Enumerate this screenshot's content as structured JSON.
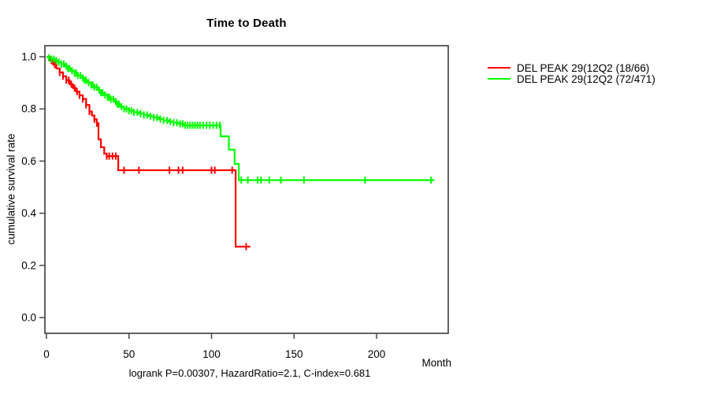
{
  "chart_data": {
    "type": "line",
    "subtype": "kaplan-meier-step-curve",
    "title": "Time to Death",
    "xlabel": "Month",
    "ylabel": "cumulative survival rate",
    "footer": "logrank P=0.00307, HazardRatio=2.1, C-index=0.681",
    "x_ticks": [
      0,
      50,
      100,
      150,
      200
    ],
    "y_ticks": [
      0.0,
      0.2,
      0.4,
      0.6,
      0.8,
      1.0
    ],
    "xlim": [
      0,
      243
    ],
    "ylim": [
      0.0,
      1.0
    ],
    "grid": false,
    "legend_position": "right-outside",
    "frame_color": "#3c3c3c",
    "series": [
      {
        "name": "DEL PEAK 29(12Q2 (18/66)",
        "color": "#ff0000",
        "end_month": 123.5,
        "points": [
          [
            0,
            1.0
          ],
          [
            2,
            0.985
          ],
          [
            4,
            0.97
          ],
          [
            6,
            0.955
          ],
          [
            8,
            0.94
          ],
          [
            10,
            0.925
          ],
          [
            12,
            0.91
          ],
          [
            14,
            0.895
          ],
          [
            16,
            0.88
          ],
          [
            18,
            0.866
          ],
          [
            20,
            0.852
          ],
          [
            22,
            0.838
          ],
          [
            24,
            0.815
          ],
          [
            26,
            0.79
          ],
          [
            27.5,
            0.775
          ],
          [
            29,
            0.76
          ],
          [
            30.5,
            0.745
          ],
          [
            31.5,
            0.683
          ],
          [
            33,
            0.653
          ],
          [
            35,
            0.628
          ],
          [
            36.5,
            0.619
          ],
          [
            43.5,
            0.565
          ],
          [
            114.6,
            0.272
          ]
        ],
        "censor_ticks": [
          3,
          5,
          8,
          10,
          12,
          13.5,
          15,
          17,
          18.5,
          20,
          22,
          24,
          26,
          29,
          30.5,
          36.5,
          38,
          40,
          42,
          47,
          56,
          74.5,
          80,
          82.5,
          100,
          102,
          112.5,
          121
        ]
      },
      {
        "name": "DEL PEAK 29(12Q2 (72/471)",
        "color": "#00ff00",
        "end_month": 235,
        "points": [
          [
            0,
            1.0
          ],
          [
            1,
            0.996
          ],
          [
            3,
            0.991
          ],
          [
            5,
            0.985
          ],
          [
            7,
            0.979
          ],
          [
            9,
            0.972
          ],
          [
            11,
            0.964
          ],
          [
            13,
            0.955
          ],
          [
            15,
            0.946
          ],
          [
            17,
            0.937
          ],
          [
            19,
            0.928
          ],
          [
            21,
            0.919
          ],
          [
            23,
            0.91
          ],
          [
            25,
            0.901
          ],
          [
            27,
            0.892
          ],
          [
            29,
            0.883
          ],
          [
            31,
            0.872
          ],
          [
            33,
            0.862
          ],
          [
            35,
            0.853
          ],
          [
            37,
            0.845
          ],
          [
            39,
            0.837
          ],
          [
            41,
            0.828
          ],
          [
            43,
            0.818
          ],
          [
            45,
            0.808
          ],
          [
            47,
            0.8
          ],
          [
            50,
            0.793
          ],
          [
            53,
            0.787
          ],
          [
            56,
            0.782
          ],
          [
            59,
            0.777
          ],
          [
            62,
            0.772
          ],
          [
            65,
            0.767
          ],
          [
            68,
            0.761
          ],
          [
            71,
            0.756
          ],
          [
            74,
            0.751
          ],
          [
            77,
            0.747
          ],
          [
            80,
            0.743
          ],
          [
            83,
            0.737
          ],
          [
            105.5,
            0.695
          ],
          [
            110.5,
            0.644
          ],
          [
            114,
            0.589
          ],
          [
            116.5,
            0.527
          ]
        ],
        "censor_ticks": [
          1.5,
          3,
          4.5,
          6,
          7.5,
          9,
          10.5,
          12,
          13,
          14,
          15.5,
          17,
          18,
          19,
          20.5,
          22,
          23,
          24,
          25.5,
          27,
          28,
          29,
          30.5,
          32,
          33,
          34,
          35.5,
          37,
          38,
          39,
          40.5,
          42,
          43,
          44,
          45.5,
          47,
          48.5,
          50,
          51.5,
          53,
          55,
          57,
          59,
          61,
          63,
          65,
          67,
          69,
          71,
          73,
          75,
          77,
          79,
          81,
          82.5,
          84,
          85.5,
          87,
          88.5,
          90,
          91.5,
          93,
          95,
          97,
          99,
          101,
          103,
          105,
          118,
          122,
          128,
          130,
          135,
          142,
          156,
          193,
          233
        ]
      }
    ]
  }
}
